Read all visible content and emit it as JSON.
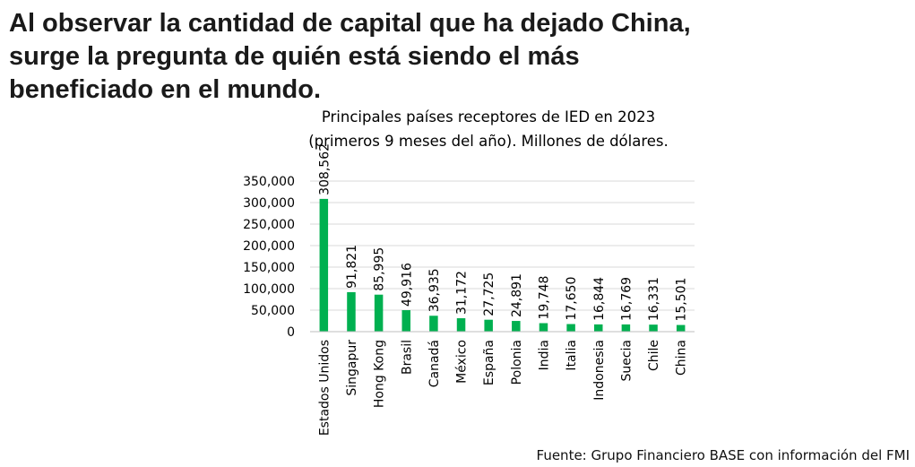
{
  "headline": {
    "line1": "Al observar la cantidad de capital que ha dejado China,",
    "line2": "surge la pregunta de quién está siendo el más",
    "line3": "beneficiado en el mundo."
  },
  "source": "Fuente: Grupo Financiero BASE con información del FMI",
  "colors": {
    "bar": "#00b050",
    "grid": "#d9d9d9",
    "text": "#000000"
  },
  "chart_data": {
    "type": "bar",
    "title_line1": "Principales países receptores de IED en 2023",
    "title_line2": "(primeros 9 meses del año). Millones de dólares.",
    "categories": [
      "Estados Unidos",
      "Singapur",
      "Hong Kong",
      "Brasil",
      "Canadá",
      "México",
      "España",
      "Polonia",
      "India",
      "Italia",
      "Indonesia",
      "Suecia",
      "Chile",
      "China"
    ],
    "values": [
      308562,
      91821,
      85995,
      49916,
      36935,
      31172,
      27725,
      24891,
      19748,
      17650,
      16844,
      16769,
      16331,
      15501
    ],
    "value_labels": [
      "308,562",
      "91,821",
      "85,995",
      "49,916",
      "36,935",
      "31,172",
      "27,725",
      "24,891",
      "19,748",
      "17,650",
      "16,844",
      "16,769",
      "16,331",
      "15,501"
    ],
    "yticks": [
      0,
      50000,
      100000,
      150000,
      200000,
      250000,
      300000,
      350000
    ],
    "ytick_labels": [
      "0",
      "50,000",
      "100,000",
      "150,000",
      "200,000",
      "250,000",
      "300,000",
      "350,000"
    ],
    "ylim": [
      0,
      350000
    ],
    "grid": true,
    "legend": "none",
    "xlabel": "",
    "ylabel": ""
  }
}
